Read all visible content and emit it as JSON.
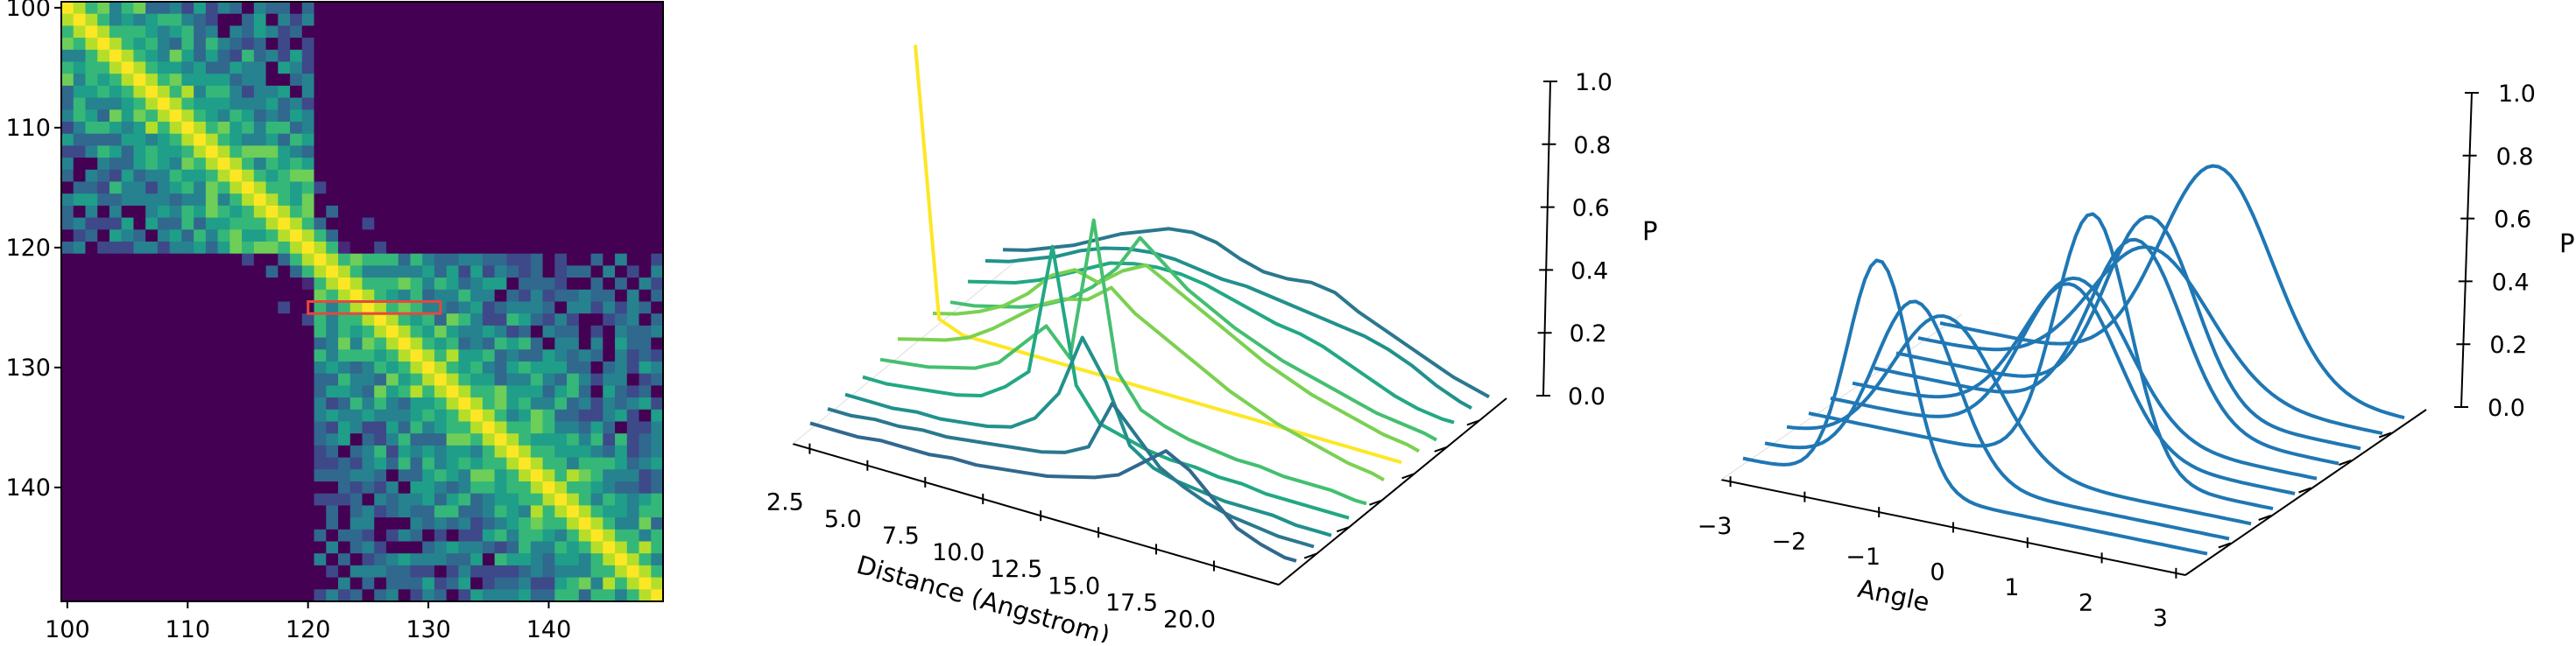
{
  "chart_data": [
    {
      "type": "heatmap",
      "title": "",
      "colormap": "viridis",
      "x_range": [
        100,
        149
      ],
      "y_range": [
        100,
        149
      ],
      "x_ticks": [
        "100",
        "110",
        "120",
        "130",
        "140"
      ],
      "y_ticks": [
        "100",
        "110",
        "120",
        "130",
        "140"
      ],
      "highlight_box": {
        "x": [
          120,
          131
        ],
        "y": [
          124.5,
          125.5
        ],
        "color": "#e8473c"
      }
    },
    {
      "type": "line",
      "projection": "3d-waterfall",
      "xlabel": "Distance (Angstrom)",
      "zlabel": "P",
      "x_ticks": [
        "2.5",
        "5.0",
        "7.5",
        "10.0",
        "12.5",
        "15.0",
        "17.5",
        "20.0"
      ],
      "z_ticks": [
        "0.0",
        "0.2",
        "0.4",
        "0.6",
        "0.8",
        "1.0"
      ],
      "xlim": [
        1.5,
        22
      ],
      "zlim": [
        0,
        1
      ],
      "x": [
        1.5,
        2.5,
        3.5,
        4.5,
        5.5,
        6.5,
        7.5,
        8.5,
        9.5,
        10.5,
        11.5,
        12.5,
        13.5,
        14.5,
        15.5,
        16.5,
        17.5,
        18.5,
        19.5,
        20.5,
        21.5,
        22.0
      ],
      "series": [
        {
          "color": "#31688e",
          "values": [
            0.02,
            0.02,
            0.02,
            0.03,
            0.03,
            0.03,
            0.04,
            0.04,
            0.05,
            0.06,
            0.07,
            0.09,
            0.11,
            0.14,
            0.2,
            0.26,
            0.22,
            0.15,
            0.08,
            0.05,
            0.03,
            0.03
          ]
        },
        {
          "color": "#2a788e",
          "values": [
            0.02,
            0.02,
            0.03,
            0.03,
            0.04,
            0.04,
            0.05,
            0.06,
            0.07,
            0.08,
            0.1,
            0.14,
            0.3,
            0.22,
            0.14,
            0.1,
            0.07,
            0.05,
            0.04,
            0.03,
            0.03,
            0.03
          ]
        },
        {
          "color": "#21918c",
          "values": [
            0.02,
            0.02,
            0.02,
            0.03,
            0.03,
            0.04,
            0.05,
            0.07,
            0.12,
            0.22,
            0.42,
            0.3,
            0.12,
            0.07,
            0.05,
            0.04,
            0.03,
            0.03,
            0.03,
            0.02,
            0.02,
            0.02
          ]
        },
        {
          "color": "#22a884",
          "values": [
            0.03,
            0.03,
            0.04,
            0.05,
            0.06,
            0.08,
            0.13,
            0.2,
            0.62,
            0.2,
            0.1,
            0.08,
            0.06,
            0.05,
            0.05,
            0.04,
            0.04,
            0.03,
            0.03,
            0.03,
            0.03,
            0.03
          ]
        },
        {
          "color": "#44bf70",
          "values": [
            0.04,
            0.05,
            0.06,
            0.08,
            0.1,
            0.14,
            0.22,
            0.3,
            0.22,
            0.68,
            0.22,
            0.12,
            0.09,
            0.07,
            0.06,
            0.05,
            0.05,
            0.04,
            0.04,
            0.04,
            0.03,
            0.03
          ]
        },
        {
          "color": "#7ad151",
          "values": [
            0.06,
            0.08,
            0.1,
            0.13,
            0.18,
            0.24,
            0.3,
            0.34,
            0.36,
            0.42,
            0.36,
            0.32,
            0.28,
            0.24,
            0.2,
            0.17,
            0.14,
            0.12,
            0.1,
            0.08,
            0.07,
            0.06
          ]
        },
        {
          "color": "#fde725",
          "values": [
            0.95,
            0.1,
            0.07,
            0.07,
            0.07,
            0.07,
            0.07,
            0.07,
            0.07,
            0.07,
            0.07,
            0.07,
            0.07,
            0.07,
            0.07,
            0.07,
            0.07,
            0.07,
            0.07,
            0.07,
            0.07,
            0.07
          ]
        },
        {
          "color": "#7ad151",
          "values": [
            0.05,
            0.07,
            0.1,
            0.14,
            0.2,
            0.28,
            0.32,
            0.3,
            0.36,
            0.4,
            0.36,
            0.32,
            0.28,
            0.24,
            0.2,
            0.17,
            0.14,
            0.12,
            0.1,
            0.08,
            0.07,
            0.06
          ]
        },
        {
          "color": "#44bf70",
          "values": [
            0.04,
            0.05,
            0.07,
            0.09,
            0.12,
            0.16,
            0.22,
            0.3,
            0.42,
            0.36,
            0.3,
            0.26,
            0.22,
            0.19,
            0.16,
            0.14,
            0.12,
            0.1,
            0.08,
            0.07,
            0.06,
            0.05
          ]
        },
        {
          "color": "#22a884",
          "values": [
            0.06,
            0.08,
            0.1,
            0.13,
            0.17,
            0.21,
            0.25,
            0.27,
            0.28,
            0.28,
            0.27,
            0.25,
            0.23,
            0.21,
            0.2,
            0.18,
            0.15,
            0.12,
            0.09,
            0.07,
            0.06,
            0.06
          ]
        },
        {
          "color": "#21918c",
          "values": [
            0.08,
            0.1,
            0.13,
            0.16,
            0.2,
            0.23,
            0.25,
            0.26,
            0.26,
            0.25,
            0.24,
            0.24,
            0.23,
            0.22,
            0.21,
            0.2,
            0.19,
            0.17,
            0.14,
            0.1,
            0.07,
            0.06
          ]
        },
        {
          "color": "#2a788e",
          "values": [
            0.07,
            0.09,
            0.12,
            0.15,
            0.19,
            0.23,
            0.26,
            0.29,
            0.3,
            0.29,
            0.26,
            0.24,
            0.24,
            0.25,
            0.24,
            0.2,
            0.17,
            0.14,
            0.11,
            0.08,
            0.06,
            0.05
          ]
        }
      ]
    },
    {
      "type": "line",
      "projection": "3d-waterfall",
      "xlabel": "Angle",
      "zlabel": "P",
      "x_ticks": [
        "−3",
        "−2",
        "−1",
        "0",
        "1",
        "2",
        "3"
      ],
      "z_ticks": [
        "0.0",
        "0.2",
        "0.4",
        "0.6",
        "0.8",
        "1.0"
      ],
      "xlim": [
        -3.14,
        3.14
      ],
      "zlim": [
        0,
        1
      ],
      "color": "#1f77b4",
      "series": [
        {
          "mean": -1.3,
          "sd": 0.42,
          "peak": 0.72
        },
        {
          "mean": -1.1,
          "sd": 0.55,
          "peak": 0.55
        },
        {
          "mean": -1.0,
          "sd": 0.7,
          "peak": 0.46
        },
        {
          "mean": 0.7,
          "sd": 0.5,
          "peak": 0.82
        },
        {
          "mean": 0.1,
          "sd": 0.65,
          "peak": 0.52
        },
        {
          "mean": -0.1,
          "sd": 0.7,
          "peak": 0.48
        },
        {
          "mean": 0.4,
          "sd": 0.62,
          "peak": 0.58
        },
        {
          "mean": 0.3,
          "sd": 0.6,
          "peak": 0.6
        },
        {
          "mean": 0.0,
          "sd": 0.8,
          "peak": 0.44
        },
        {
          "mean": 0.6,
          "sd": 0.75,
          "peak": 0.68
        }
      ]
    }
  ]
}
